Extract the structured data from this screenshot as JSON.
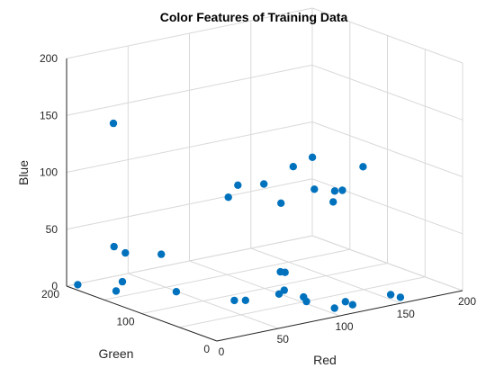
{
  "chart_data": {
    "type": "scatter3d",
    "title": "Color Features of Training Data",
    "xlabel": "Red",
    "ylabel": "Green",
    "zlabel": "Blue",
    "xlim": [
      0,
      200
    ],
    "ylim": [
      0,
      200
    ],
    "zlim": [
      0,
      200
    ],
    "xticks": [
      "0",
      "50",
      "100",
      "150",
      "200"
    ],
    "yticks": [
      "0",
      "100",
      "200"
    ],
    "zticks": [
      "0",
      "50",
      "100",
      "150",
      "200"
    ],
    "grid": true,
    "marker_color": "#0072BD",
    "points": [
      {
        "x": 3,
        "y": 190,
        "z": 3
      },
      {
        "x": 24,
        "y": 165,
        "z": 7
      },
      {
        "x": 14,
        "y": 157,
        "z": 3
      },
      {
        "x": 8,
        "y": 150,
        "z": 45
      },
      {
        "x": 13,
        "y": 143,
        "z": 40
      },
      {
        "x": 13,
        "y": 159,
        "z": 150
      },
      {
        "x": 78,
        "y": 65,
        "z": 105
      },
      {
        "x": 65,
        "y": 91,
        "z": 90
      },
      {
        "x": 97,
        "y": 57,
        "z": 118
      },
      {
        "x": 104,
        "y": 43,
        "z": 128
      },
      {
        "x": 33,
        "y": 128,
        "z": 38
      },
      {
        "x": 33,
        "y": 108,
        "z": 10
      },
      {
        "x": 66,
        "y": 80,
        "z": 103
      },
      {
        "x": 84,
        "y": 52,
        "z": 90
      },
      {
        "x": 54,
        "y": 65,
        "z": 8
      },
      {
        "x": 60,
        "y": 60,
        "z": 8
      },
      {
        "x": 95,
        "y": 40,
        "z": 8
      },
      {
        "x": 115,
        "y": 17,
        "z": 5
      },
      {
        "x": 116,
        "y": 9,
        "z": 4
      },
      {
        "x": 100,
        "y": 7,
        "z": 5
      },
      {
        "x": 90,
        "y": 28,
        "z": 8
      },
      {
        "x": 147,
        "y": 9,
        "z": 6
      },
      {
        "x": 150,
        "y": 1,
        "z": 5
      },
      {
        "x": 75,
        "y": 40,
        "z": 15
      },
      {
        "x": 75,
        "y": 33,
        "z": 20
      },
      {
        "x": 75,
        "y": 38,
        "z": 35
      },
      {
        "x": 75,
        "y": 32,
        "z": 36
      },
      {
        "x": 113,
        "y": 28,
        "z": 100
      },
      {
        "x": 105,
        "y": 42,
        "z": 100
      },
      {
        "x": 118,
        "y": 26,
        "z": 100
      },
      {
        "x": 130,
        "y": 18,
        "z": 120
      },
      {
        "x": 113,
        "y": 30,
        "z": 90
      }
    ]
  }
}
